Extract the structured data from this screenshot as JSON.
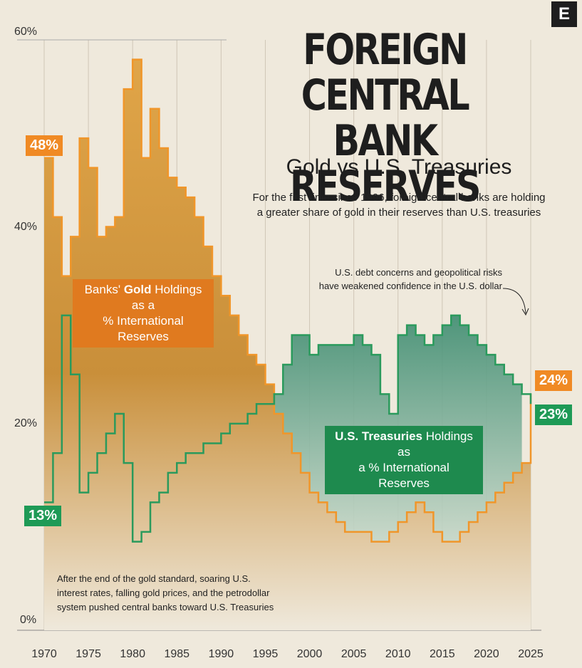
{
  "title_line1": "FOREIGN CENTRAL",
  "title_line2": "BANK RESERVES",
  "subtitle": "Gold vs U.S. Treasuries",
  "description_line1": "For the first time since 1996, foreign central banks are holding",
  "description_line2": "a greater share of gold in their reserves than U.S. treasuries",
  "logo": "E",
  "gold_label": {
    "pre": "Banks' ",
    "bold": "Gold",
    "post": " Holdings as a",
    "line2": "% International Reserves"
  },
  "treasury_label": {
    "bold": "U.S. Treasuries",
    "post": " Holdings as",
    "line2": "a % International Reserves"
  },
  "badges": {
    "gold_start": "48%",
    "treasury_start": "13%",
    "gold_end": "24%",
    "treasury_end": "23%"
  },
  "annotation_right_line1": "U.S. debt concerns and geopolitical risks",
  "annotation_right_line2": "have weakened confidence in the U.S. dollar",
  "annotation_left_line1": "After the end of the gold standard, soaring U.S.",
  "annotation_left_line2": "interest rates, falling gold prices, and the petrodollar",
  "annotation_left_line3": "system pushed central banks toward U.S. Treasuries",
  "colors": {
    "gold": "#f0962a",
    "gold_fill": "#d9993f",
    "treasury": "#2a9a5c",
    "treasury_fill": "#3f8f73"
  },
  "chart_data": {
    "type": "area",
    "x_range": [
      1970,
      2025
    ],
    "ylim": [
      0,
      60
    ],
    "y_ticks": [
      "0%",
      "20%",
      "40%",
      "60%"
    ],
    "x_ticks": [
      "1970",
      "1975",
      "1980",
      "1985",
      "1990",
      "1995",
      "2000",
      "2005",
      "2010",
      "2015",
      "2020",
      "2025"
    ],
    "grid": "vertical",
    "series": [
      {
        "name": "Gold",
        "x": [
          1970,
          1971,
          1972,
          1973,
          1974,
          1975,
          1976,
          1977,
          1978,
          1979,
          1980,
          1981,
          1982,
          1983,
          1984,
          1985,
          1986,
          1987,
          1988,
          1989,
          1990,
          1991,
          1992,
          1993,
          1994,
          1995,
          1996,
          1997,
          1998,
          1999,
          2000,
          2001,
          2002,
          2003,
          2004,
          2005,
          2006,
          2007,
          2008,
          2009,
          2010,
          2011,
          2012,
          2013,
          2014,
          2015,
          2016,
          2017,
          2018,
          2019,
          2020,
          2021,
          2022,
          2023,
          2024,
          2025
        ],
        "values": [
          48,
          42,
          36,
          40,
          50,
          47,
          40,
          41,
          42,
          55,
          58,
          48,
          53,
          49,
          46,
          45,
          44,
          42,
          39,
          36,
          34,
          32,
          30,
          28,
          27,
          25,
          22,
          20,
          18,
          16,
          14,
          13,
          12,
          11,
          10,
          10,
          10,
          9,
          9,
          10,
          11,
          12,
          13,
          12,
          10,
          9,
          9,
          10,
          11,
          12,
          13,
          14,
          15,
          16,
          17,
          24
        ]
      },
      {
        "name": "U.S. Treasuries",
        "x": [
          1970,
          1971,
          1972,
          1973,
          1974,
          1975,
          1976,
          1977,
          1978,
          1979,
          1980,
          1981,
          1982,
          1983,
          1984,
          1985,
          1986,
          1987,
          1988,
          1989,
          1990,
          1991,
          1992,
          1993,
          1994,
          1995,
          1996,
          1997,
          1998,
          1999,
          2000,
          2001,
          2002,
          2003,
          2004,
          2005,
          2006,
          2007,
          2008,
          2009,
          2010,
          2011,
          2012,
          2013,
          2014,
          2015,
          2016,
          2017,
          2018,
          2019,
          2020,
          2021,
          2022,
          2023,
          2024,
          2025
        ],
        "values": [
          13,
          18,
          32,
          26,
          14,
          16,
          18,
          20,
          22,
          17,
          9,
          10,
          13,
          14,
          16,
          17,
          18,
          18,
          19,
          19,
          20,
          21,
          21,
          22,
          23,
          23,
          24,
          27,
          30,
          30,
          28,
          29,
          29,
          29,
          29,
          30,
          29,
          28,
          24,
          22,
          30,
          31,
          30,
          29,
          30,
          31,
          32,
          31,
          30,
          29,
          28,
          27,
          26,
          25,
          24,
          23
        ]
      }
    ]
  }
}
